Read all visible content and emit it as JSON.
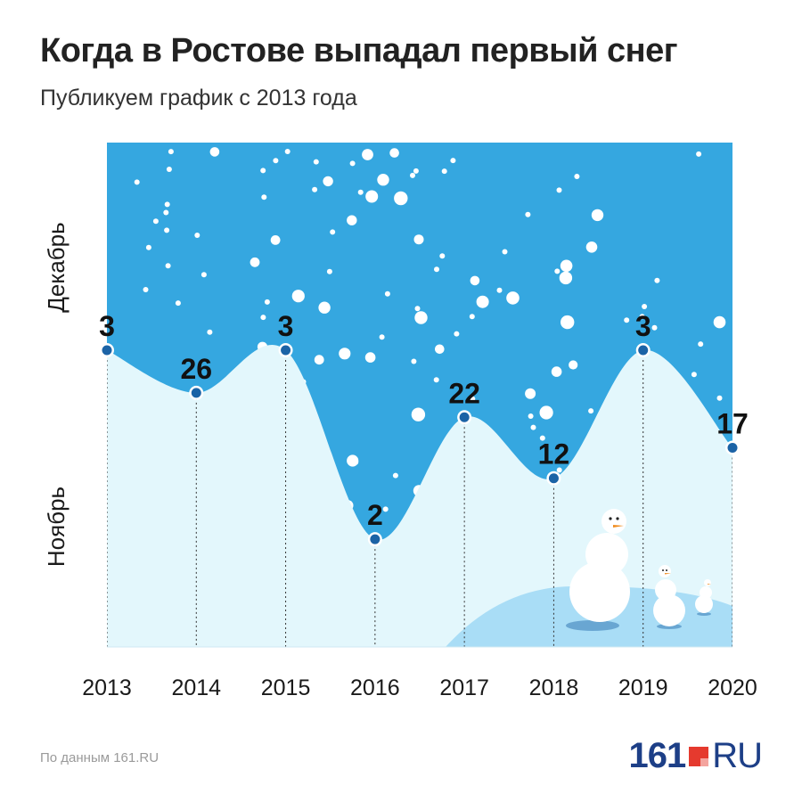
{
  "title": "Когда в Ростове выпадал первый снег",
  "subtitle": "Публикуем график с 2013 года",
  "source": "По данным 161.RU",
  "logo": {
    "number": "161",
    "suffix": "RU"
  },
  "colors": {
    "sky": "#35a7e0",
    "snow": "#e3f7fc",
    "hill": "#a9ddf6",
    "marker": "#1b63a6",
    "text": "#1a1a1a"
  },
  "chart_data": {
    "type": "area",
    "x": [
      "2013",
      "2014",
      "2015",
      "2016",
      "2017",
      "2018",
      "2019",
      "2020"
    ],
    "series": [
      {
        "values": [
          {
            "date": "3 декабря",
            "label": "3"
          },
          {
            "date": "26 ноября",
            "label": "26"
          },
          {
            "date": "3 декабря",
            "label": "3"
          },
          {
            "date": "2 ноября",
            "label": "2"
          },
          {
            "date": "22 ноября",
            "label": "22"
          },
          {
            "date": "12 ноября",
            "label": "12"
          },
          {
            "date": "3 декабря",
            "label": "3"
          },
          {
            "date": "17 ноября",
            "label": "17"
          }
        ]
      }
    ],
    "day_of_season": [
      33,
      26,
      33,
      2,
      22,
      12,
      33,
      17
    ],
    "y_labels": [
      "Декабрь",
      "Ноябрь"
    ],
    "grid": false,
    "legend": "none"
  }
}
